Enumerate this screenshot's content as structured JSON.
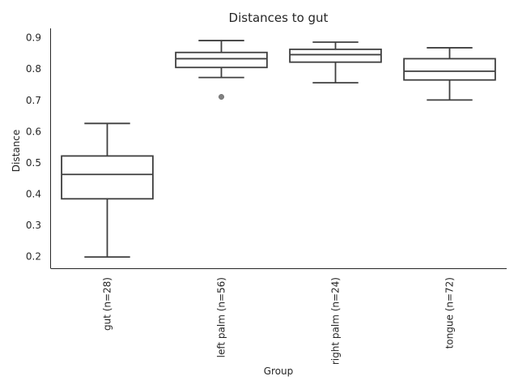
{
  "chart_data": {
    "type": "box",
    "title": "Distances to gut",
    "xlabel": "Group",
    "ylabel": "Distance",
    "ylim": [
      0.163,
      0.93
    ],
    "yticks": [
      "0.2",
      "0.3",
      "0.4",
      "0.5",
      "0.6",
      "0.7",
      "0.8",
      "0.9"
    ],
    "ytick_values": [
      0.2,
      0.3,
      0.4,
      0.5,
      0.6,
      0.7,
      0.8,
      0.9
    ],
    "grid": false,
    "categories": [
      "gut (n=28)",
      "left palm (n=56)",
      "right palm (n=24)",
      "tongue (n=72)"
    ],
    "boxes": [
      {
        "whislo": 0.199,
        "q1": 0.385,
        "med": 0.463,
        "q3": 0.522,
        "whishi": 0.626,
        "fliers": []
      },
      {
        "whislo": 0.773,
        "q1": 0.805,
        "med": 0.833,
        "q3": 0.853,
        "whishi": 0.891,
        "fliers": [
          0.711
        ]
      },
      {
        "whislo": 0.756,
        "q1": 0.822,
        "med": 0.846,
        "q3": 0.863,
        "whishi": 0.886,
        "fliers": []
      },
      {
        "whislo": 0.701,
        "q1": 0.765,
        "med": 0.793,
        "q3": 0.833,
        "whishi": 0.868,
        "fliers": []
      }
    ],
    "colors": {
      "box_edge": "#3f3f3f",
      "box_fill": "#ffffff",
      "flier": "#808080",
      "spine": "#262626"
    }
  }
}
